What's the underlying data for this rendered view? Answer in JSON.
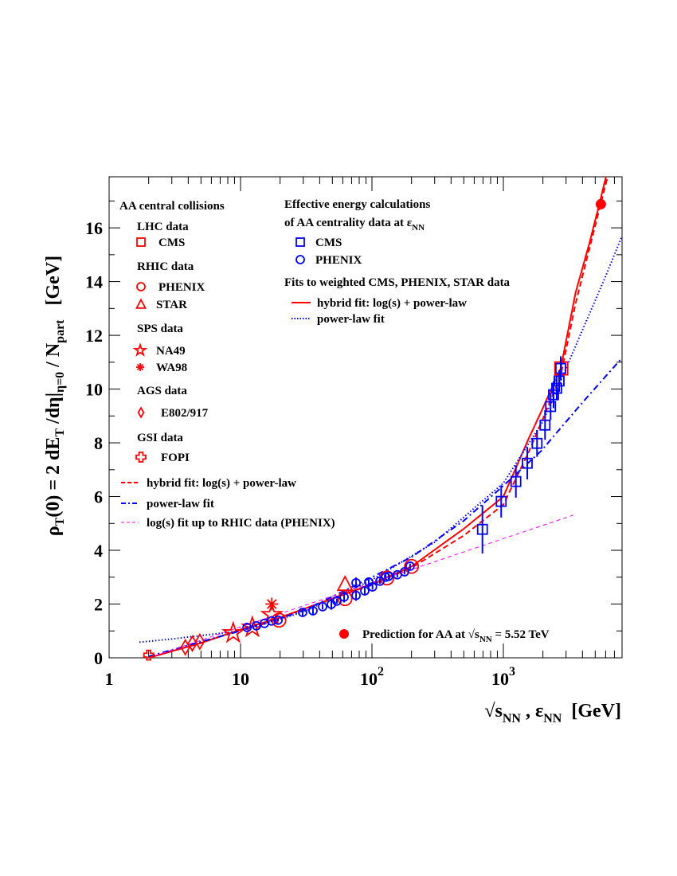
{
  "chart_data": {
    "type": "scatter",
    "xscale": "log",
    "xlim": [
      1,
      8000
    ],
    "ylim": [
      0,
      17.9
    ],
    "grid": false,
    "xlabel": {
      "parts": [
        "√s",
        "NN",
        " , ε",
        "NN",
        "  [GeV]"
      ]
    },
    "ylabel": {
      "parts": [
        "ρ",
        "T",
        "(0) = 2 dE",
        "T",
        " /dη|",
        "η=0",
        " / N",
        "part",
        "   [GeV]"
      ]
    },
    "xticks": [
      {
        "value": 1,
        "base": "1",
        "exp": ""
      },
      {
        "value": 10,
        "base": "10",
        "exp": ""
      },
      {
        "value": 100,
        "base": "10",
        "exp": "2"
      },
      {
        "value": 1000,
        "base": "10",
        "exp": "3"
      }
    ],
    "yticks": [
      0,
      2,
      4,
      6,
      8,
      10,
      12,
      14,
      16
    ],
    "series": [
      {
        "name": "CMS",
        "group": "LHC data",
        "marker": "open-square",
        "color": "#ff0000",
        "points": [
          [
            2760,
            10.77
          ]
        ]
      },
      {
        "name": "PHENIX",
        "group": "RHIC data",
        "marker": "open-circle",
        "color": "#ff0000",
        "points": [
          [
            19.6,
            1.4
          ],
          [
            62.4,
            2.2
          ],
          [
            130,
            2.97
          ],
          [
            200,
            3.4
          ]
        ]
      },
      {
        "name": "STAR",
        "group": "RHIC data",
        "marker": "open-triangle",
        "color": "#ff0000",
        "points": [
          [
            62.4,
            2.7
          ]
        ]
      },
      {
        "name": "NA49",
        "group": "SPS data",
        "marker": "open-star",
        "color": "#ff0000",
        "points": [
          [
            8.8,
            0.92
          ],
          [
            12.3,
            1.13
          ],
          [
            17.3,
            1.6
          ]
        ]
      },
      {
        "name": "WA98",
        "group": "SPS data",
        "marker": "asterisk",
        "color": "#ff0000",
        "points": [
          [
            17.3,
            2.0
          ]
        ]
      },
      {
        "name": "E802/917",
        "group": "AGS data",
        "marker": "open-diamond",
        "color": "#ff0000",
        "points": [
          [
            3.8,
            0.39
          ],
          [
            4.3,
            0.53
          ],
          [
            4.9,
            0.6
          ]
        ]
      },
      {
        "name": "FOPI",
        "group": "GSI data",
        "marker": "open-cross",
        "color": "#ff0000",
        "points": [
          [
            2.0,
            0.1
          ]
        ]
      },
      {
        "name": "CMS",
        "group": "Effective energy",
        "marker": "open-square",
        "color": "#0000ff",
        "points": [
          [
            693,
            4.78,
            0.9
          ],
          [
            963,
            5.82,
            0.6
          ],
          [
            1245,
            6.56,
            0.6
          ],
          [
            1520,
            7.24,
            0.6
          ],
          [
            1804,
            7.98,
            0.5
          ],
          [
            2075,
            8.66,
            0.55
          ],
          [
            2288,
            9.35,
            0.5
          ],
          [
            2408,
            9.79,
            0.5
          ],
          [
            2546,
            10.03,
            0.45
          ],
          [
            2656,
            10.3,
            0.4
          ],
          [
            2730,
            10.77,
            0.45
          ]
        ]
      },
      {
        "name": "PHENIX",
        "group": "Effective energy",
        "marker": "open-circle",
        "color": "#0000ff",
        "points": [
          [
            11.2,
            1.13,
            0.05
          ],
          [
            13.2,
            1.19,
            0.05
          ],
          [
            15.2,
            1.28,
            0.05
          ],
          [
            17.2,
            1.37,
            0.05
          ],
          [
            19.3,
            1.4,
            0.05
          ],
          [
            29.7,
            1.69,
            0.15
          ],
          [
            35.6,
            1.75,
            0.12
          ],
          [
            42.1,
            1.9,
            0.1
          ],
          [
            49.1,
            1.99,
            0.2
          ],
          [
            54.1,
            2.11,
            0.1
          ],
          [
            61.4,
            2.26,
            0.2
          ],
          [
            75.7,
            2.32,
            0.2
          ],
          [
            75.7,
            2.79,
            0.2
          ],
          [
            88.2,
            2.49,
            0.15
          ],
          [
            94.6,
            2.82,
            0.15
          ],
          [
            101,
            2.64,
            0.1
          ],
          [
            115,
            2.85,
            0.1
          ],
          [
            127,
            3.0,
            0.1
          ],
          [
            134,
            3.03,
            0.1
          ],
          [
            156,
            3.09,
            0.1
          ],
          [
            177,
            3.2,
            0.1
          ],
          [
            195,
            3.41,
            0.1
          ]
        ]
      },
      {
        "name": "Prediction for AA at √sNN = 5.52 TeV",
        "marker": "filled-circle",
        "color": "#ff0000",
        "points": [
          [
            5520,
            16.88
          ]
        ]
      }
    ],
    "curves": [
      {
        "name": "hybrid fit: log(s) + power-law",
        "legend": "right",
        "style": "solid",
        "color": "#ff0000",
        "points": [
          [
            2,
            0
          ],
          [
            5,
            0.55
          ],
          [
            10,
            1.05
          ],
          [
            20,
            1.5
          ],
          [
            50,
            2.2
          ],
          [
            100,
            2.75
          ],
          [
            200,
            3.4
          ],
          [
            500,
            4.8
          ],
          [
            1000,
            6.0
          ],
          [
            1540,
            8.1
          ],
          [
            2000,
            9.3
          ],
          [
            2730,
            10.77
          ],
          [
            3550,
            13.6
          ],
          [
            4500,
            15.4
          ],
          [
            5450,
            17.0
          ],
          [
            6100,
            18.0
          ]
        ]
      },
      {
        "name": "power-law fit",
        "legend": "right",
        "style": "dotted",
        "color": "#0000ff",
        "points": [
          [
            1.7,
            0.58
          ],
          [
            3,
            0.7
          ],
          [
            10,
            1.0
          ],
          [
            30,
            1.7
          ],
          [
            100,
            2.9
          ],
          [
            300,
            4.3
          ],
          [
            1000,
            6.5
          ],
          [
            2000,
            8.8
          ],
          [
            2730,
            10.3
          ],
          [
            4000,
            12.2
          ],
          [
            6000,
            14.2
          ],
          [
            8000,
            15.7
          ]
        ]
      },
      {
        "name": "hybrid fit: log(s) + power-law",
        "legend": "left",
        "style": "dashed",
        "color": "#ff0000",
        "points": [
          [
            2,
            0
          ],
          [
            5,
            0.55
          ],
          [
            10,
            1.05
          ],
          [
            20,
            1.5
          ],
          [
            50,
            2.2
          ],
          [
            100,
            2.72
          ],
          [
            200,
            3.35
          ],
          [
            500,
            4.55
          ],
          [
            1000,
            5.7
          ],
          [
            1540,
            7.6
          ],
          [
            2000,
            8.9
          ],
          [
            2730,
            10.5
          ],
          [
            3550,
            13.2
          ],
          [
            4500,
            15.2
          ],
          [
            5500,
            16.9
          ],
          [
            6300,
            18.0
          ]
        ]
      },
      {
        "name": "power-law fit",
        "legend": "left",
        "style": "dashdot",
        "color": "#0000ff",
        "points": [
          [
            2,
            0.05
          ],
          [
            5,
            0.6
          ],
          [
            10,
            1.0
          ],
          [
            30,
            1.75
          ],
          [
            100,
            3.0
          ],
          [
            200,
            3.75
          ],
          [
            500,
            5.1
          ],
          [
            1000,
            6.4
          ],
          [
            1940,
            7.7
          ],
          [
            4000,
            9.5
          ],
          [
            7800,
            11.1
          ]
        ]
      },
      {
        "name": "log(s) fit up to RHIC data (PHENIX)",
        "legend": "left",
        "style": "dashed-thin",
        "color": "#ff00ff",
        "points": [
          [
            2,
            0
          ],
          [
            3415,
            5.31
          ]
        ]
      }
    ]
  },
  "legend_left": {
    "title": "AA central collisions",
    "groups": [
      {
        "label": "LHC data",
        "items": [
          {
            "label": "CMS",
            "marker": "open-square"
          }
        ]
      },
      {
        "label": "RHIC data",
        "items": [
          {
            "label": "PHENIX",
            "marker": "open-circle"
          },
          {
            "label": "STAR",
            "marker": "open-triangle"
          }
        ]
      },
      {
        "label": "SPS data",
        "items": [
          {
            "label": "NA49",
            "marker": "open-star"
          },
          {
            "label": "WA98",
            "marker": "asterisk"
          }
        ]
      },
      {
        "label": "AGS data",
        "items": [
          {
            "label": "E802/917",
            "marker": "open-diamond"
          }
        ]
      },
      {
        "label": "GSI data",
        "items": [
          {
            "label": "FOPI",
            "marker": "open-cross"
          }
        ]
      }
    ],
    "fits": [
      "hybrid fit: log(s) + power-law",
      "power-law fit",
      "log(s) fit up to RHIC data (PHENIX)"
    ]
  },
  "legend_right": {
    "title_line1": "Effective energy calculations",
    "title_line2": "of AA centrality data at ε",
    "title_line2_sub": "NN",
    "items": [
      "CMS",
      "PHENIX"
    ],
    "fits_title": "Fits to weighted CMS, PHENIX, STAR data",
    "fits": [
      "hybrid fit: log(s) + power-law",
      "power-law fit"
    ]
  },
  "prediction_label": {
    "pre": "Prediction for AA at √s",
    "sub": "NN",
    "post": " = 5.52 TeV"
  }
}
